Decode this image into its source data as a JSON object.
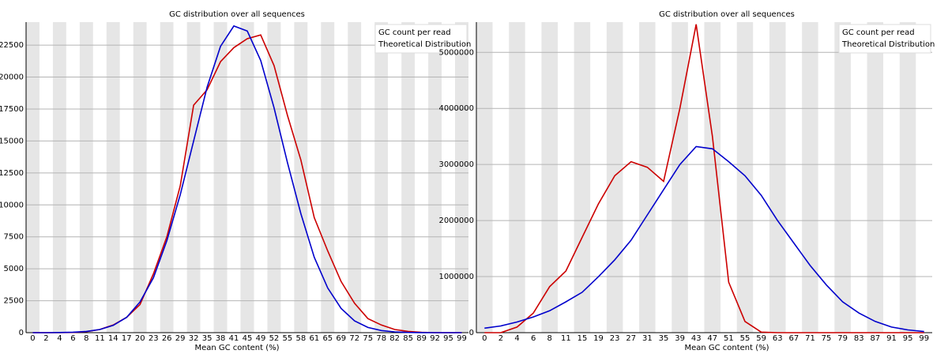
{
  "chart_data": [
    {
      "type": "line",
      "title": "GC distribution over all sequences",
      "x_label": "Mean GC content (%)",
      "categories": [
        "0",
        "2",
        "4",
        "6",
        "8",
        "11",
        "14",
        "17",
        "20",
        "23",
        "26",
        "29",
        "32",
        "35",
        "38",
        "41",
        "45",
        "49",
        "52",
        "55",
        "58",
        "61",
        "65",
        "69",
        "72",
        "75",
        "78",
        "82",
        "85",
        "89",
        "92",
        "95",
        "99"
      ],
      "series": [
        {
          "name": "GC count per read",
          "color": "#cc0000",
          "values": [
            0,
            0,
            0,
            20,
            80,
            250,
            600,
            1200,
            2200,
            4600,
            7500,
            11500,
            17800,
            19000,
            21200,
            22300,
            23000,
            23300,
            20900,
            17000,
            13500,
            9000,
            6400,
            4000,
            2300,
            1100,
            600,
            250,
            100,
            30,
            0,
            0,
            0
          ]
        },
        {
          "name": "Theoretical Distribution",
          "color": "#0000cc",
          "values": [
            0,
            0,
            10,
            40,
            100,
            250,
            570,
            1200,
            2400,
            4300,
            7200,
            10800,
            15000,
            19200,
            22400,
            24000,
            23600,
            21300,
            17600,
            13300,
            9300,
            5900,
            3500,
            1900,
            920,
            410,
            170,
            60,
            20,
            5,
            0,
            0,
            0
          ]
        }
      ],
      "ylim": [
        0,
        24300
      ],
      "yticks": [
        0,
        2500,
        5000,
        7500,
        10000,
        12500,
        15000,
        17500,
        20000,
        22500
      ],
      "grid": true,
      "legend": "upper right"
    },
    {
      "type": "line",
      "title": "GC distribution over all sequences",
      "x_label": "Mean GC content (%)",
      "categories": [
        "0",
        "2",
        "4",
        "6",
        "8",
        "11",
        "15",
        "19",
        "23",
        "27",
        "31",
        "35",
        "39",
        "43",
        "47",
        "51",
        "55",
        "59",
        "63",
        "67",
        "71",
        "75",
        "79",
        "83",
        "87",
        "91",
        "95",
        "99"
      ],
      "series": [
        {
          "name": "GC count per read",
          "color": "#cc0000",
          "values": [
            0,
            0,
            100000,
            350000,
            820000,
            1100000,
            1700000,
            2300000,
            2800000,
            3050000,
            2950000,
            2700000,
            4000000,
            5500000,
            3500000,
            900000,
            200000,
            10000,
            0,
            0,
            0,
            0,
            0,
            0,
            0,
            0,
            0,
            0
          ]
        },
        {
          "name": "Theoretical Distribution",
          "color": "#0000cc",
          "values": [
            80000,
            120000,
            190000,
            280000,
            390000,
            550000,
            720000,
            1000000,
            1300000,
            1650000,
            2100000,
            2550000,
            3000000,
            3320000,
            3280000,
            3050000,
            2800000,
            2450000,
            2000000,
            1600000,
            1200000,
            850000,
            550000,
            350000,
            200000,
            100000,
            50000,
            20000
          ]
        }
      ],
      "ylim": [
        0,
        5540000
      ],
      "yticks": [
        0,
        1000000,
        2000000,
        3000000,
        4000000,
        5000000
      ],
      "grid": true,
      "legend": "upper right"
    }
  ]
}
